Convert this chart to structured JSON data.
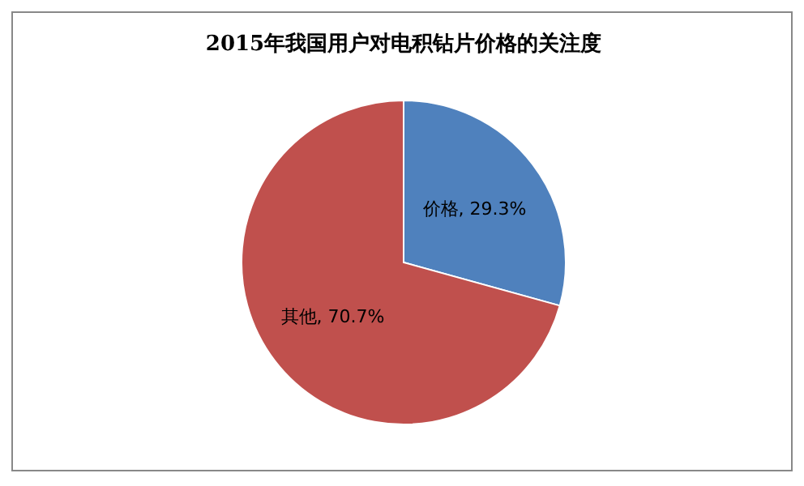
{
  "chart_data": {
    "type": "pie",
    "title": "2015年我国用户对电积钻片价格的关注度",
    "categories": [
      "价格",
      "其他"
    ],
    "values": [
      29.3,
      70.7
    ],
    "colors": [
      "#4f81bd",
      "#c0504d"
    ],
    "value_labels": [
      "29.3%",
      "70.7%"
    ],
    "legend": false
  }
}
